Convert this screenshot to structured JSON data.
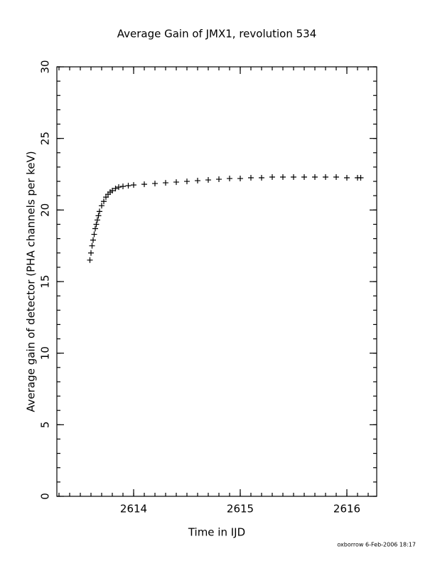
{
  "chart_data": {
    "type": "scatter",
    "marker": "plus",
    "color": "#000000",
    "title": "Average Gain of JMX1, revolution 534",
    "x_label": "Time in IJD",
    "y_label": "Average gain of detector (PHA channels per keV)",
    "footer": "oxborrow  6-Feb-2006 18:17",
    "xlim": [
      2613.28,
      2616.28
    ],
    "xticks": [
      2614,
      2615,
      2616
    ],
    "ylim": [
      0,
      30
    ],
    "yticks": [
      0,
      5,
      10,
      15,
      20,
      25,
      30
    ],
    "x": [
      2613.59,
      2613.6,
      2613.61,
      2613.62,
      2613.63,
      2613.64,
      2613.65,
      2613.66,
      2613.67,
      2613.68,
      2613.7,
      2613.72,
      2613.74,
      2613.76,
      2613.78,
      2613.8,
      2613.83,
      2613.86,
      2613.9,
      2613.95,
      2614.0,
      2614.1,
      2614.2,
      2614.3,
      2614.4,
      2614.5,
      2614.6,
      2614.7,
      2614.8,
      2614.9,
      2615.0,
      2615.1,
      2615.2,
      2615.3,
      2615.4,
      2615.5,
      2615.6,
      2615.7,
      2615.8,
      2615.9,
      2616.0,
      2616.1,
      2616.13
    ],
    "values": [
      16.5,
      17.0,
      17.5,
      17.9,
      18.3,
      18.7,
      19.0,
      19.3,
      19.6,
      19.9,
      20.3,
      20.6,
      20.9,
      21.1,
      21.25,
      21.35,
      21.5,
      21.6,
      21.65,
      21.7,
      21.75,
      21.8,
      21.85,
      21.9,
      21.95,
      22.0,
      22.05,
      22.1,
      22.15,
      22.2,
      22.2,
      22.25,
      22.25,
      22.3,
      22.3,
      22.3,
      22.3,
      22.3,
      22.3,
      22.3,
      22.25,
      22.25,
      22.25
    ]
  }
}
